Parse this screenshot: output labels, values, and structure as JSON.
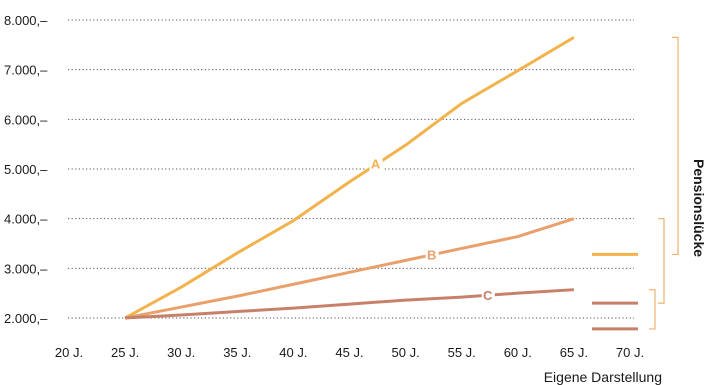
{
  "chart_data": {
    "type": "line",
    "x": [
      25,
      30,
      35,
      40,
      45,
      50,
      55,
      60,
      65
    ],
    "series": [
      {
        "name": "A",
        "color": "#f2b24c",
        "values": [
          2000,
          2620,
          3310,
          3960,
          4740,
          5480,
          6320,
          6980,
          7650
        ]
      },
      {
        "name": "B",
        "color": "#e9a06a",
        "values": [
          2000,
          2220,
          2440,
          2680,
          2920,
          3160,
          3400,
          3640,
          4000
        ]
      },
      {
        "name": "C",
        "color": "#c8806a",
        "values": [
          2000,
          2060,
          2130,
          2200,
          2280,
          2360,
          2420,
          2500,
          2570
        ]
      }
    ],
    "xticks": [
      "20 J.",
      "25 J.",
      "30 J.",
      "35 J.",
      "40 J.",
      "45 J.",
      "50 J.",
      "55 J.",
      "60 J.",
      "65 J.",
      "70 J."
    ],
    "yticks": [
      "2.000,–",
      "3.000,–",
      "4.000,–",
      "5.000,–",
      "6.000,–",
      "7.000,–",
      "8.000,–"
    ],
    "xlim": [
      20,
      70
    ],
    "ylim": [
      2000,
      8000
    ],
    "grid": "horizontal dotted",
    "markers": [
      {
        "value": 3280,
        "color": "#f2b24c"
      },
      {
        "value": 2300,
        "color": "#c8806a"
      },
      {
        "value": 1780,
        "color": "#c8806a"
      }
    ],
    "side_label": "Pensionslücke",
    "source": "Eigene Darstellung"
  }
}
